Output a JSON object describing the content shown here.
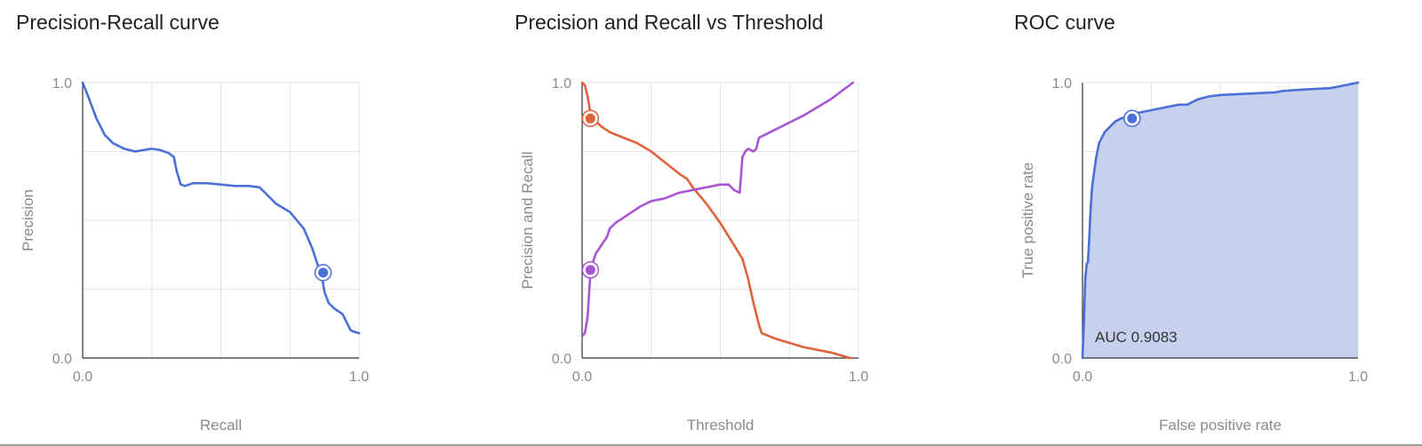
{
  "chart_data": [
    {
      "type": "line",
      "title": "Precision-Recall curve",
      "xlabel": "Recall",
      "ylabel": "Precision",
      "xlim": [
        0,
        1
      ],
      "ylim": [
        0,
        1
      ],
      "x_ticks": [
        "0.0",
        "1.0"
      ],
      "y_ticks": [
        "0.0",
        "1.0"
      ],
      "grid": true,
      "series": [
        {
          "color": "#4a6fd6",
          "x": [
            0.0,
            0.02,
            0.05,
            0.08,
            0.11,
            0.15,
            0.19,
            0.22,
            0.25,
            0.28,
            0.31,
            0.33,
            0.34,
            0.355,
            0.37,
            0.4,
            0.45,
            0.5,
            0.55,
            0.6,
            0.64,
            0.66,
            0.7,
            0.75,
            0.8,
            0.83,
            0.84,
            0.85,
            0.86,
            0.87,
            0.875,
            0.89,
            0.91,
            0.94,
            0.96,
            0.97,
            1.0
          ],
          "y": [
            1.0,
            0.95,
            0.87,
            0.81,
            0.78,
            0.76,
            0.75,
            0.755,
            0.76,
            0.755,
            0.745,
            0.73,
            0.68,
            0.63,
            0.625,
            0.635,
            0.635,
            0.63,
            0.625,
            0.625,
            0.62,
            0.6,
            0.56,
            0.53,
            0.47,
            0.4,
            0.37,
            0.34,
            0.31,
            0.27,
            0.24,
            0.2,
            0.18,
            0.16,
            0.12,
            0.1,
            0.09
          ]
        }
      ],
      "markers": [
        {
          "x": 0.87,
          "y": 0.31,
          "color": "#4a6fd6"
        }
      ]
    },
    {
      "type": "line",
      "title": "Precision and Recall vs Threshold",
      "xlabel": "Threshold",
      "ylabel": "Precision and Recall",
      "xlim": [
        0,
        1
      ],
      "ylim": [
        0,
        1
      ],
      "x_ticks": [
        "0.0",
        "1.0"
      ],
      "y_ticks": [
        "0.0",
        "1.0"
      ],
      "grid": true,
      "series": [
        {
          "color": "#e0623a",
          "x": [
            0.0,
            0.01,
            0.02,
            0.03,
            0.05,
            0.07,
            0.1,
            0.15,
            0.2,
            0.25,
            0.3,
            0.35,
            0.38,
            0.4,
            0.45,
            0.5,
            0.55,
            0.58,
            0.6,
            0.62,
            0.64,
            0.65,
            0.7,
            0.8,
            0.9,
            0.97
          ],
          "y": [
            1.0,
            0.99,
            0.95,
            0.89,
            0.86,
            0.84,
            0.82,
            0.8,
            0.78,
            0.75,
            0.71,
            0.67,
            0.65,
            0.62,
            0.56,
            0.49,
            0.41,
            0.36,
            0.29,
            0.2,
            0.12,
            0.09,
            0.07,
            0.04,
            0.02,
            0.0
          ]
        },
        {
          "color": "#a855d4",
          "x": [
            0.0,
            0.01,
            0.02,
            0.03,
            0.04,
            0.05,
            0.07,
            0.09,
            0.1,
            0.12,
            0.15,
            0.18,
            0.21,
            0.25,
            0.3,
            0.35,
            0.4,
            0.45,
            0.5,
            0.53,
            0.55,
            0.57,
            0.58,
            0.59,
            0.6,
            0.62,
            0.63,
            0.64,
            0.66,
            0.7,
            0.8,
            0.9,
            0.98
          ],
          "y": [
            0.08,
            0.09,
            0.15,
            0.31,
            0.35,
            0.38,
            0.41,
            0.44,
            0.47,
            0.49,
            0.51,
            0.53,
            0.55,
            0.57,
            0.58,
            0.6,
            0.61,
            0.62,
            0.63,
            0.63,
            0.61,
            0.6,
            0.73,
            0.75,
            0.76,
            0.75,
            0.76,
            0.8,
            0.81,
            0.83,
            0.88,
            0.94,
            1.0
          ]
        }
      ],
      "markers": [
        {
          "x": 0.03,
          "y": 0.87,
          "color": "#e0623a"
        },
        {
          "x": 0.03,
          "y": 0.32,
          "color": "#a855d4"
        }
      ]
    },
    {
      "type": "area",
      "title": "ROC curve",
      "xlabel": "False positive rate",
      "ylabel": "True positive rate",
      "xlim": [
        0,
        1
      ],
      "ylim": [
        0,
        1
      ],
      "x_ticks": [
        "0.0",
        "1.0"
      ],
      "y_ticks": [
        "0.0",
        "1.0"
      ],
      "grid": true,
      "annotation": "AUC 0.9083",
      "series": [
        {
          "color": "#4a6fd6",
          "fill": "#c5cdee",
          "x": [
            0.0,
            0.005,
            0.01,
            0.015,
            0.02,
            0.025,
            0.03,
            0.035,
            0.04,
            0.05,
            0.06,
            0.07,
            0.08,
            0.1,
            0.12,
            0.14,
            0.16,
            0.2,
            0.25,
            0.3,
            0.35,
            0.38,
            0.42,
            0.46,
            0.5,
            0.6,
            0.7,
            0.73,
            0.8,
            0.9,
            0.95,
            1.0
          ],
          "y": [
            0.0,
            0.12,
            0.29,
            0.34,
            0.35,
            0.45,
            0.55,
            0.62,
            0.66,
            0.73,
            0.78,
            0.8,
            0.82,
            0.84,
            0.86,
            0.87,
            0.875,
            0.89,
            0.9,
            0.91,
            0.92,
            0.92,
            0.94,
            0.95,
            0.955,
            0.96,
            0.965,
            0.97,
            0.975,
            0.98,
            0.99,
            1.0
          ]
        }
      ],
      "markers": [
        {
          "x": 0.18,
          "y": 0.87,
          "color": "#4a6fd6"
        }
      ]
    }
  ]
}
